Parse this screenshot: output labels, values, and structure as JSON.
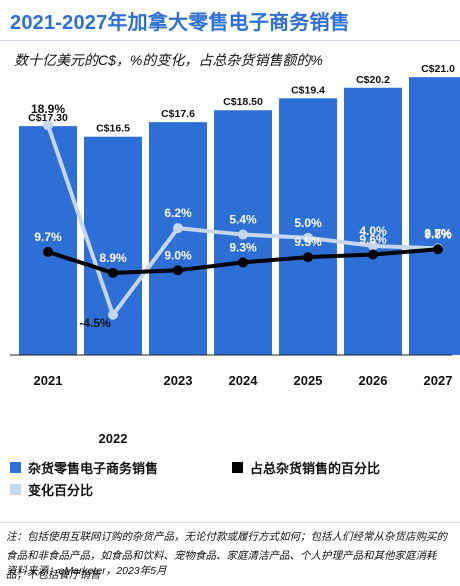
{
  "title": "2021-2027年加拿大零售电子商务销售",
  "subtitle": "数十亿美元的C$，%的变化，占总杂货销售额的%",
  "colors": {
    "bar": "#2e6fd6",
    "share_line": "#000000",
    "change_line": "#c5d6ee",
    "title": "#2e6fd6"
  },
  "chart_data": {
    "type": "bar",
    "categories": [
      "2021",
      "2022",
      "2023",
      "2024",
      "2025",
      "2026",
      "2027"
    ],
    "series": [
      {
        "name": "杂货零售电子商务销售",
        "type": "bar",
        "values": [
          17.3,
          16.5,
          17.6,
          18.5,
          19.4,
          20.2,
          21.0
        ],
        "labels": [
          "C$17.30",
          "C$16.5",
          "C$17.6",
          "C$18.50",
          "C$19.4",
          "C$20.2",
          "C$21.0"
        ]
      },
      {
        "name": "占总杂货销售的百分比",
        "type": "line",
        "values": [
          9.7,
          8.9,
          9.0,
          9.3,
          9.5,
          9.6,
          9.8
        ],
        "labels": [
          "9.7%",
          "8.9%",
          "9.0%",
          "9.3%",
          "9.5%",
          "9.6%",
          "9.8%"
        ]
      },
      {
        "name": "变化百分比",
        "type": "line",
        "values": [
          18.9,
          -4.5,
          6.2,
          5.4,
          5.0,
          4.0,
          3.7
        ],
        "labels": [
          "18.9%",
          "-4.5%",
          "6.2%",
          "5.4%",
          "5.0%",
          "4.0%",
          "3.7%"
        ]
      }
    ],
    "legend_position": "bottom"
  },
  "legend": {
    "bar_label": "杂货零售电子商务销售",
    "share_label": "占总杂货销售的百分比",
    "change_label": "变化百分比"
  },
  "notes": "注：包括使用互联网订购的杂货产品，无论付款或履行方式如何；包括人们经常从杂货店购买的食品和非食品产品，如食品和饮料、宠物食品、家庭清洁产品、个人护理产品和其他家庭消耗品；不包括餐厅销售",
  "source": "资料来源：eMarketer，2023年5月"
}
